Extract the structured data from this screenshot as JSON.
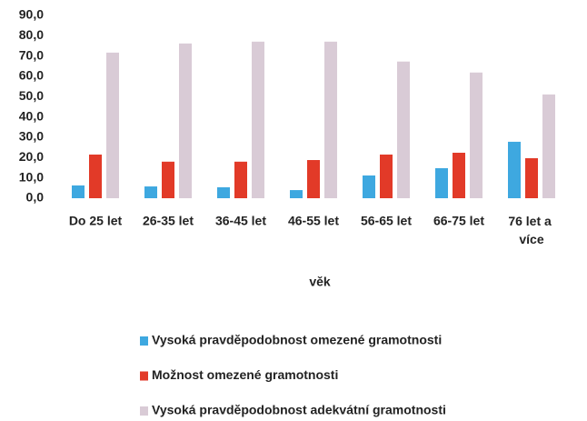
{
  "chart_data": {
    "type": "bar",
    "x_label": "věk",
    "categories": [
      "Do 25 let",
      "26-35 let",
      "36-45 let",
      "46-55 let",
      "56-65 let",
      "66-75 let",
      "76 let a více"
    ],
    "series": [
      {
        "name": "Vysoká pravděpodobnost omezené gramotnosti",
        "color": "#3ea8e0",
        "values": [
          6.3,
          5.8,
          5.4,
          4.0,
          11.2,
          14.8,
          27.8
        ]
      },
      {
        "name": "Možnost omezené gramotnosti",
        "color": "#e23a28",
        "values": [
          21.5,
          18.0,
          18.0,
          18.8,
          21.5,
          22.4,
          19.7
        ]
      },
      {
        "name": "Vysoká pravděpodobnost adekvátní gramotnosti",
        "color": "#d9cbd6",
        "values": [
          71.7,
          76.2,
          77.1,
          77.1,
          67.3,
          61.9,
          51.1
        ]
      }
    ],
    "ylim": [
      0,
      90
    ],
    "yticks": [
      {
        "value": 0,
        "label": "0,0"
      },
      {
        "value": 10,
        "label": "10,0"
      },
      {
        "value": 20,
        "label": "20,0"
      },
      {
        "value": 30,
        "label": "30,0"
      },
      {
        "value": 40,
        "label": "40,0"
      },
      {
        "value": 50,
        "label": "50,0"
      },
      {
        "value": 60,
        "label": "60,0"
      },
      {
        "value": 70,
        "label": "70,0"
      },
      {
        "value": 80,
        "label": "80,0"
      },
      {
        "value": 90,
        "label": "90,0"
      }
    ],
    "grid": false
  }
}
